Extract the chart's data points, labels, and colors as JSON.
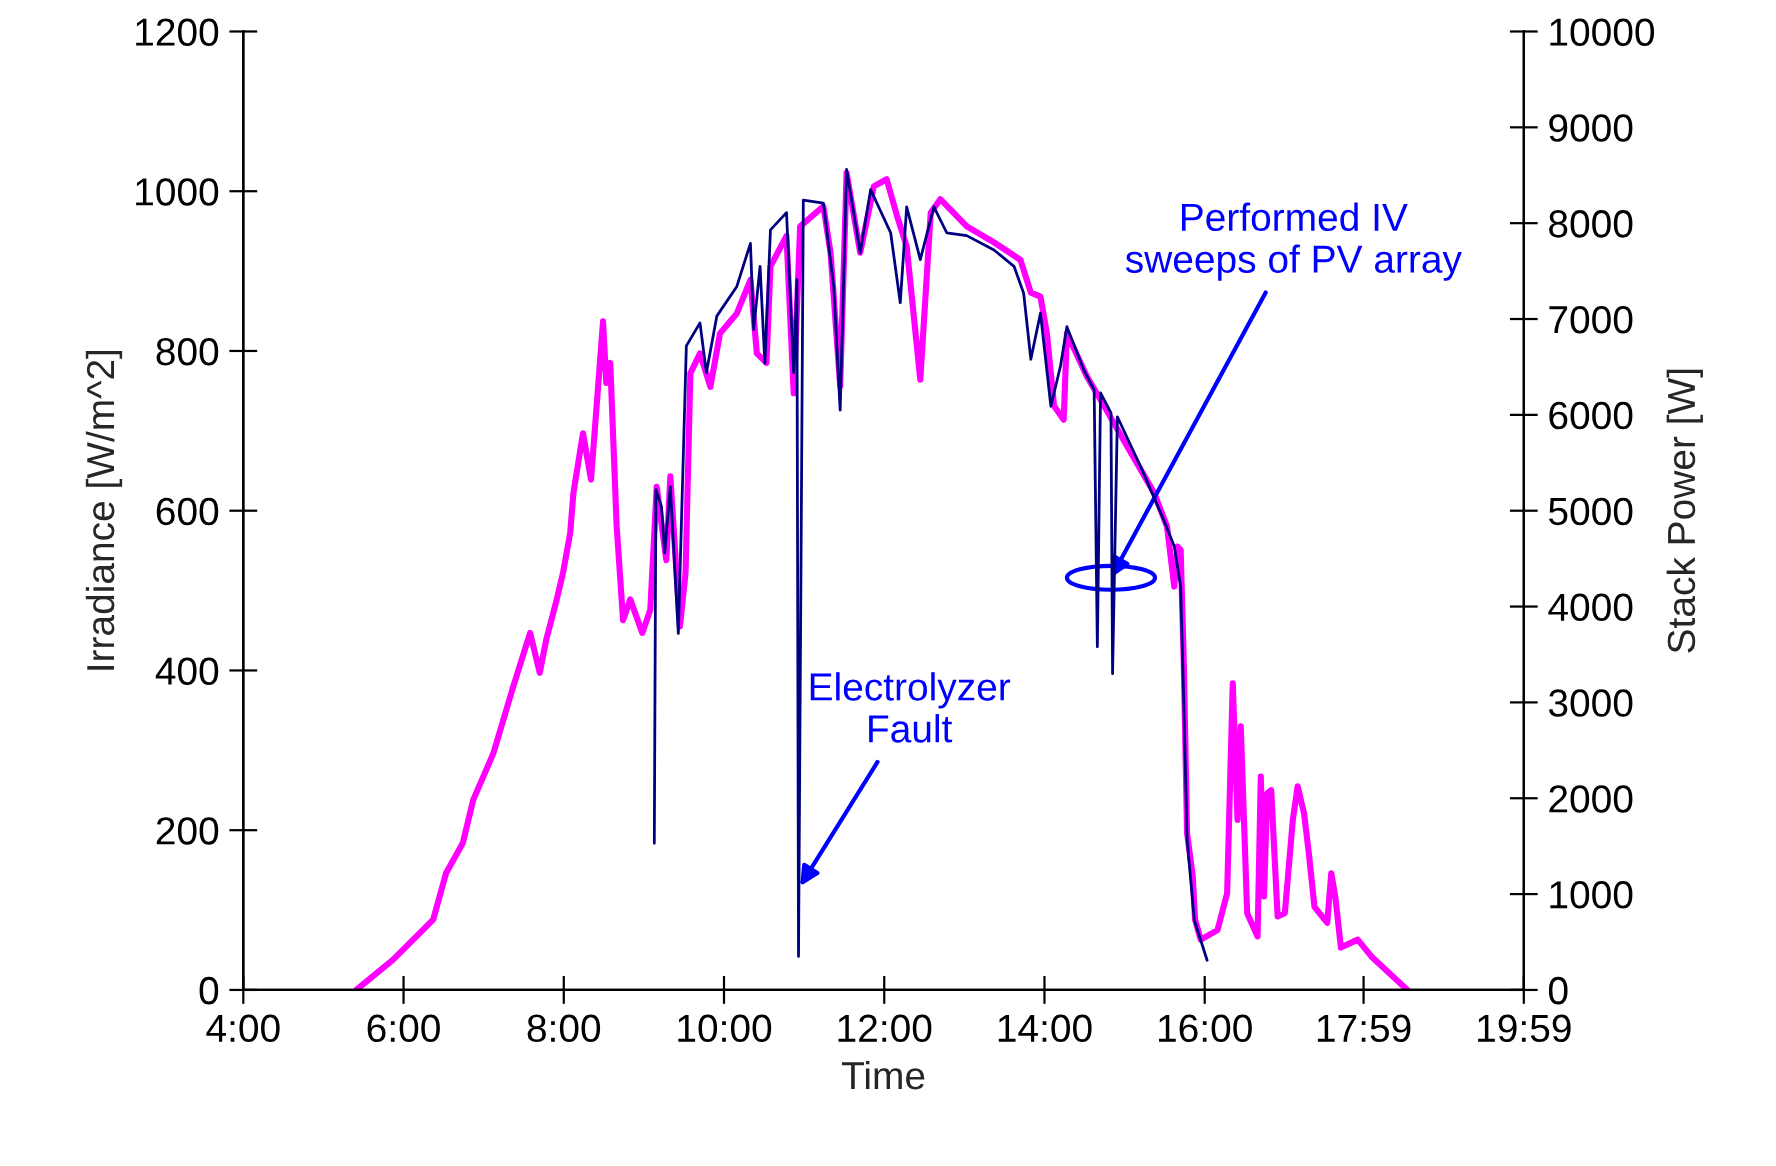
{
  "chart_data": {
    "type": "line",
    "xlabel": "Time",
    "ylabel": "Irradiance [W/m^2]",
    "y2label": "Stack Power [W]",
    "xlim": [
      4,
      19.983
    ],
    "xticks": [
      {
        "value": 4,
        "label": "4:00"
      },
      {
        "value": 6,
        "label": "6:00"
      },
      {
        "value": 8,
        "label": "8:00"
      },
      {
        "value": 10,
        "label": "10:00"
      },
      {
        "value": 12,
        "label": "12:00"
      },
      {
        "value": 14,
        "label": "14:00"
      },
      {
        "value": 16,
        "label": "16:00"
      },
      {
        "value": 17.983,
        "label": "17:59"
      },
      {
        "value": 19.983,
        "label": "19:59"
      }
    ],
    "ylim": [
      0,
      1200
    ],
    "yticks": [
      0,
      200,
      400,
      600,
      800,
      1000,
      1200
    ],
    "y2lim": [
      0,
      10000
    ],
    "y2ticks": [
      0,
      1000,
      2000,
      3000,
      4000,
      5000,
      6000,
      7000,
      8000,
      9000,
      10000
    ],
    "grid": false,
    "legend": false,
    "marker": "none",
    "line_style": "solid",
    "series": [
      {
        "color": "#ff00ff",
        "x": [
          5.41,
          5.87,
          6.37,
          6.53,
          6.74,
          6.87,
          7.12,
          7.37,
          7.58,
          7.7,
          7.78,
          7.91,
          7.99,
          8.08,
          8.12,
          8.24,
          8.34,
          8.41,
          8.49,
          8.53,
          8.58,
          8.66,
          8.74,
          8.83,
          8.98,
          9.08,
          9.16,
          9.28,
          9.33,
          9.45,
          9.52,
          9.58,
          9.7,
          9.83,
          9.95,
          10.16,
          10.33,
          10.41,
          10.53,
          10.58,
          10.78,
          10.87,
          10.95,
          11.24,
          11.33,
          11.45,
          11.53,
          11.7,
          11.87,
          12.03,
          12.16,
          12.28,
          12.45,
          12.58,
          12.7,
          13.03,
          13.37,
          13.7,
          13.83,
          13.95,
          14.03,
          14.12,
          14.24,
          14.28,
          14.53,
          14.7,
          15.03,
          15.37,
          15.53,
          15.62,
          15.66,
          15.7,
          15.74,
          15.78,
          15.85,
          15.88,
          15.95,
          16.16,
          16.28,
          16.35,
          16.41,
          16.45,
          16.53,
          16.66,
          16.7,
          16.74,
          16.78,
          16.83,
          16.91,
          17.0,
          17.1,
          17.16,
          17.24,
          17.3,
          17.37,
          17.53,
          17.58,
          17.63,
          17.7,
          17.91,
          18.08,
          18.53
        ],
        "values": [
          0,
          38,
          88,
          146,
          184,
          238,
          296,
          380,
          447,
          397,
          438,
          488,
          522,
          572,
          622,
          697,
          639,
          731,
          837,
          760,
          785,
          581,
          463,
          489,
          447,
          476,
          630,
          538,
          643,
          455,
          522,
          772,
          797,
          755,
          822,
          847,
          889,
          797,
          785,
          906,
          944,
          747,
          956,
          981,
          923,
          756,
          1023,
          923,
          1006,
          1015,
          969,
          931,
          764,
          973,
          990,
          956,
          936,
          914,
          873,
          868,
          822,
          731,
          714,
          822,
          768,
          739,
          681,
          622,
          580,
          505,
          555,
          551,
          405,
          196,
          143,
          88,
          63,
          75,
          121,
          384,
          213,
          330,
          96,
          67,
          267,
          117,
          246,
          250,
          92,
          96,
          213,
          255,
          221,
          171,
          104,
          84,
          146,
          117,
          53,
          63,
          42,
          0
        ]
      },
      {
        "color": "#000080",
        "axis": "y2",
        "x": [
          9.13,
          9.15,
          9.22,
          9.26,
          9.33,
          9.43,
          9.53,
          9.7,
          9.78,
          9.91,
          10.16,
          10.33,
          10.37,
          10.45,
          10.51,
          10.58,
          10.78,
          10.87,
          10.91,
          10.93,
          10.99,
          11.24,
          11.37,
          11.45,
          11.53,
          11.7,
          11.83,
          12.08,
          12.2,
          12.28,
          12.45,
          12.62,
          12.78,
          13.03,
          13.37,
          13.62,
          13.74,
          13.83,
          13.95,
          14.08,
          14.2,
          14.28,
          14.49,
          14.62,
          14.66,
          14.7,
          14.83,
          14.85,
          14.91,
          15.2,
          15.49,
          15.62,
          15.7,
          15.74,
          15.78,
          15.87,
          16.03
        ],
        "values": [
          1530,
          5220,
          5040,
          4560,
          5250,
          3720,
          6720,
          6960,
          6440,
          7030,
          7340,
          7790,
          6890,
          7550,
          6540,
          7930,
          8110,
          6440,
          7410,
          350,
          8240,
          8210,
          7340,
          6050,
          8560,
          7690,
          8350,
          7900,
          7170,
          8170,
          7620,
          8170,
          7900,
          7870,
          7720,
          7550,
          7270,
          6580,
          7060,
          6090,
          6510,
          6920,
          6470,
          6260,
          3580,
          6230,
          6020,
          3300,
          5980,
          5460,
          4900,
          4630,
          4210,
          2960,
          1570,
          730,
          310
        ]
      }
    ],
    "annotations": [
      {
        "text": "Electrolyzer\nFault",
        "x": 10.95,
        "y": 130
      },
      {
        "text": "Performed IV\nsweeps of PV array",
        "x": 14.83,
        "y": 516
      }
    ]
  }
}
